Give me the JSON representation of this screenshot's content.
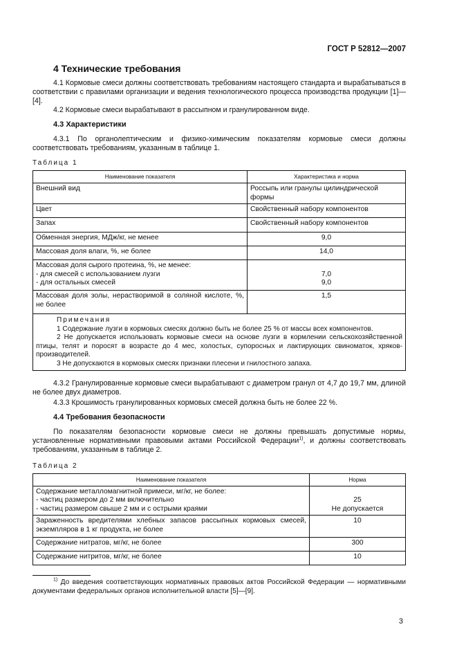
{
  "header": {
    "doc_id": "ГОСТ Р 52812—2007"
  },
  "section_title": "4 Технические требования",
  "p4_1": "4.1 Кормовые смеси должны соответствовать требованиям настоящего стандарта и вырабатываться в соответствии с правилами организации и ведения технологического процесса производства продукции [1]—[4].",
  "p4_2": "4.2 Кормовые смеси вырабатывают в рассыпном и гранулированном виде.",
  "h4_3": "4.3 Характеристики",
  "p4_3_1": "4.3.1 По органолептическим и физико-химическим показателям кормовые смеси должны соответствовать требованиям, указанным в таблице 1.",
  "table1": {
    "caption": "Таблица 1",
    "headers": [
      "Наименование показателя",
      "Характеристика и норма"
    ],
    "rows": [
      {
        "name": "Внешний вид",
        "value": "Россыпь или гранулы цилиндрической формы"
      },
      {
        "name": "Цвет",
        "value": "Свойственный набору компонентов"
      },
      {
        "name": "Запах",
        "value": "Свойственный набору компонентов"
      },
      {
        "name": "Обменная энергия, МДж/кг, не менее",
        "value": "9,0"
      },
      {
        "name": "Массовая доля влаги, %, не более",
        "value": "14,0"
      },
      {
        "name": "Массовая доля сырого протеина, %, не менее:",
        "sub": [
          "- для смесей с использованием лузги",
          "- для остальных смесей"
        ],
        "subvalues": [
          "7,0",
          "9,0"
        ]
      },
      {
        "name": "Массовая доля золы, нерастворимой в соляной кислоте, %, не более",
        "value": "1,5"
      }
    ],
    "notes_title": "Примечания",
    "notes": [
      "1 Содержание лузги в кормовых смесях должно быть не более 25 % от массы всех компонентов.",
      "2 Не допускается использовать кормовые смеси на основе лузги в кормлении сельскохозяйственной птицы, телят и поросят в возрасте до 4 мес, холостых, супоросных и лактирующих свиноматок, хряков-производителей.",
      "3 Не допускаются в кормовых смесях признаки плесени и гнилостного запаха."
    ]
  },
  "p4_3_2": "4.3.2 Гранулированные кормовые смеси вырабатывают с диаметром гранул от 4,7 до 19,7 мм, длиной не более двух диаметров.",
  "p4_3_3": "4.3.3 Крошимость гранулированных кормовых смесей должна быть не более 22 %.",
  "h4_4": "4.4 Требования безопасности",
  "p4_4a": "По показателям безопасности кормовые смеси не должны превышать допустимые нормы, установленные нормативными правовыми актами Российской Федерации",
  "p4_4_sup": "1)",
  "p4_4b": ", и должны соответствовать требованиям, указанным в таблице 2.",
  "table2": {
    "caption": "Таблица 2",
    "headers": [
      "Наименование показателя",
      "Норма"
    ],
    "rows": [
      {
        "name": "Содержание металломагнитной примеси, мг/кг, не более:",
        "sub": [
          "- частиц размером до 2 мм включительно",
          "- частиц размером свыше 2 мм и с острыми краями"
        ],
        "subvalues": [
          "25",
          "Не допускается"
        ]
      },
      {
        "name": "Зараженность вредителями хлебных запасов рассыпных кормовых смесей, экземпляров в 1 кг продукта, не более",
        "value": "10"
      },
      {
        "name": "Содержание нитратов, мг/кг, не более",
        "value": "300"
      },
      {
        "name": "Содержание нитритов, мг/кг, не более",
        "value": "10"
      }
    ]
  },
  "footnote": {
    "mark": "1)",
    "text": " До введения соответствующих нормативных правовых актов Российской Федерации — нормативными документами федеральных органов исполнительной власти [5]—[9]."
  },
  "page_number": "3"
}
